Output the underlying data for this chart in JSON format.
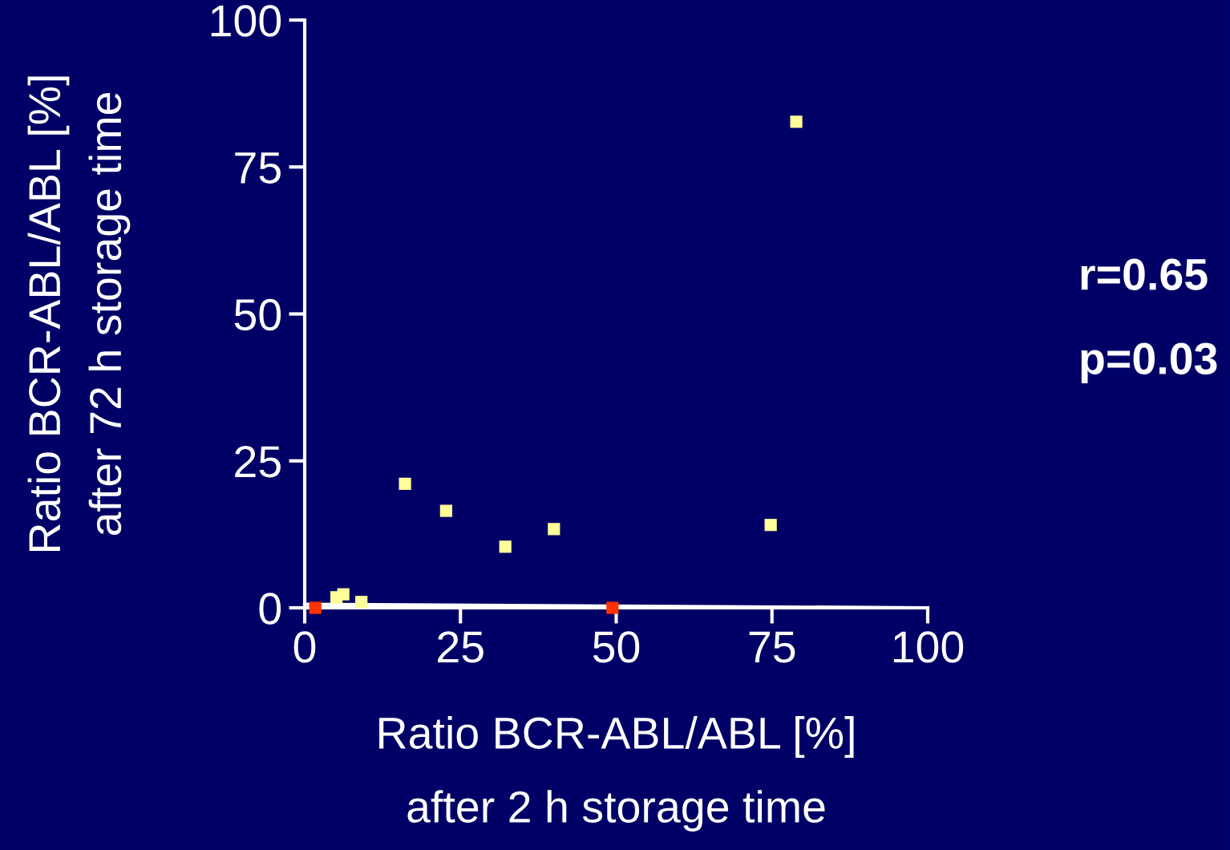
{
  "chart_data": {
    "type": "scatter",
    "xlabel": "Ratio BCR-ABL/ABL [%]\nafter 2 h storage time",
    "ylabel": "Ratio BCR-ABL/ABL [%]\nafter 72 h storage time",
    "xlim": [
      0,
      100
    ],
    "xticks": [
      0,
      25,
      50,
      75,
      100
    ],
    "ylim": [
      0,
      100
    ],
    "yticks": [
      0,
      25,
      50,
      75,
      100
    ],
    "grid": false,
    "annotations": [
      "r=0.65",
      "p=0.03"
    ],
    "series": [
      {
        "color": "#ffff99",
        "marker": "square",
        "x": [
          78.9,
          16.1,
          22.7,
          32.2,
          40.0,
          74.8,
          5.1,
          6.2,
          9.1
        ],
        "values": [
          82.7,
          21.1,
          16.5,
          10.4,
          13.4,
          14.1,
          1.8,
          2.3,
          1.0
        ]
      },
      {
        "color": "#ff3300",
        "marker": "square",
        "x": [
          1.7,
          49.4
        ],
        "values": [
          0,
          0
        ]
      },
      {
        "type": "line",
        "color": "#ffffff",
        "x": [
          0,
          100
        ],
        "values": [
          0.6,
          0
        ]
      }
    ]
  }
}
